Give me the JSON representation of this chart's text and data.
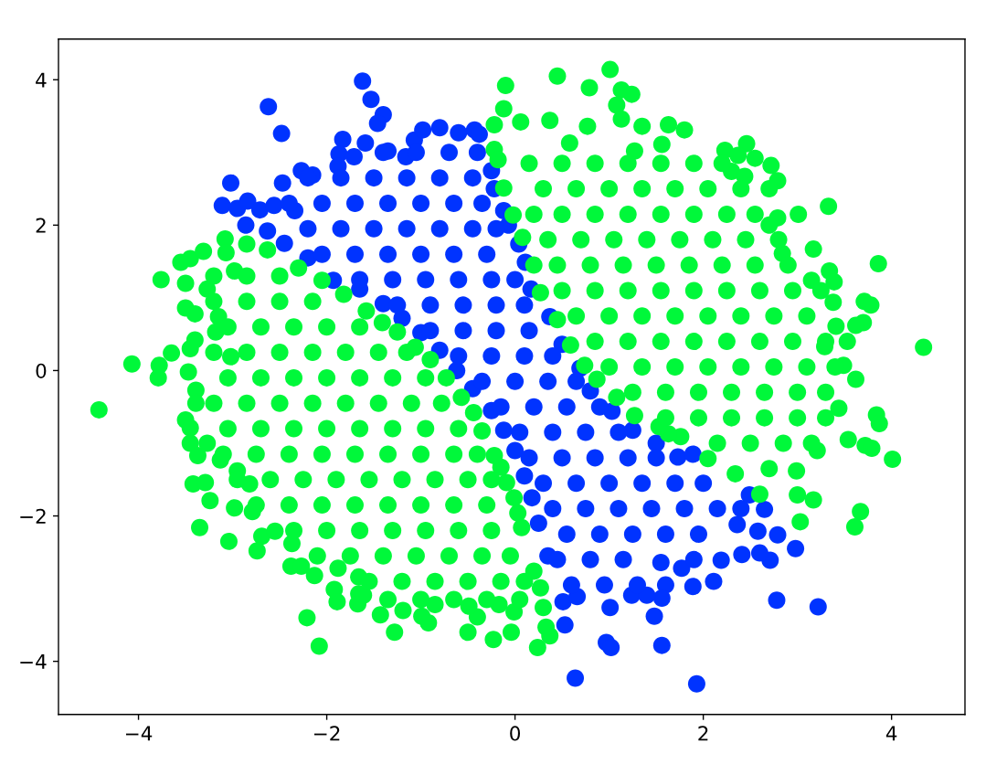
{
  "chart_data": {
    "type": "scatter",
    "marker": "circle",
    "xlim": [
      -4.85,
      4.78
    ],
    "ylim": [
      -4.73,
      4.56
    ],
    "xticks": [
      {
        "value": -4,
        "label": "−4"
      },
      {
        "value": -2,
        "label": "−2"
      },
      0,
      2,
      4
    ],
    "yticks": [
      {
        "value": -4,
        "label": "−4"
      },
      {
        "value": -2,
        "label": "−2"
      },
      0,
      2,
      4
    ],
    "series": [
      {
        "color": "#0033ff",
        "x": [
          -1.62,
          -1.53,
          -1.4,
          -1.46,
          -2.62,
          -2.48,
          -1.83,
          -1.87,
          -1.71,
          -3.02,
          -3.11,
          -2.95,
          -2.84,
          -2.71,
          -2.86,
          -2.56,
          -2.47,
          -2.27,
          -2.15,
          -1.88,
          -2.63,
          -2.34,
          -1.93,
          -1.59,
          -1.35,
          -1.16,
          -1.07,
          -0.98,
          -0.8,
          -0.6,
          -0.43,
          -0.38,
          -0.25,
          -0.22,
          -0.12,
          -0.07,
          0.04,
          0.11,
          0.17,
          0.37,
          0.5,
          0.69,
          0.8,
          1.03,
          1.25,
          1.5,
          1.73,
          1.89,
          2.49,
          2.65,
          2.36,
          2.58,
          2.79,
          2.98,
          2.71,
          2.6,
          2.41,
          2.19,
          2.11,
          1.89,
          1.77,
          1.6,
          1.56,
          2.78,
          3.22,
          1.56,
          1.93,
          0.53,
          0.64,
          0.97,
          1.02,
          1.48,
          1.55,
          1.01,
          1.24,
          1.4,
          0.51,
          0.66,
          0.35,
          0.25,
          0.18,
          0.1,
          0.0,
          -0.12,
          -0.25,
          -0.45,
          -0.62,
          -0.8,
          -1.0,
          -1.2,
          -1.4,
          -1.65,
          -2.2,
          -2.45,
          -1.4,
          -1.05,
          -0.7,
          -0.4,
          -2.2,
          -1.85,
          -1.5,
          -1.15,
          -0.8,
          -0.45,
          -2.4,
          -2.05,
          -1.7,
          -1.35,
          -1.0,
          -0.65,
          -0.35,
          -2.2,
          -1.85,
          -1.5,
          -1.15,
          -0.8,
          -0.45,
          -0.2,
          -2.05,
          -1.7,
          -1.35,
          -1.0,
          -0.65,
          -0.3,
          -1.65,
          -1.3,
          -0.95,
          -0.6,
          -0.25,
          0.0,
          -1.25,
          -0.9,
          -0.55,
          -0.2,
          0.1,
          -0.9,
          -0.55,
          -0.2,
          0.15,
          -0.6,
          -0.25,
          0.1,
          0.4,
          -0.35,
          0.0,
          0.35,
          0.65,
          -0.15,
          0.2,
          0.55,
          0.9,
          0.05,
          0.4,
          0.75,
          1.1,
          0.15,
          0.5,
          0.85,
          1.2,
          1.5,
          0.3,
          0.65,
          1.0,
          1.35,
          1.7,
          2.0,
          0.4,
          0.75,
          1.1,
          1.45,
          1.8,
          2.15,
          2.4,
          0.55,
          0.9,
          1.25,
          1.6,
          1.95,
          0.45,
          0.8,
          1.15,
          1.9,
          0.6,
          0.95,
          1.3
        ],
        "values": [
          3.98,
          3.73,
          3.52,
          3.4,
          3.63,
          3.26,
          3.18,
          2.98,
          2.94,
          2.58,
          2.27,
          2.23,
          2.33,
          2.21,
          2.0,
          2.27,
          2.58,
          2.75,
          2.69,
          2.81,
          1.92,
          2.2,
          1.24,
          3.13,
          3.02,
          2.94,
          3.17,
          3.31,
          3.34,
          3.27,
          3.31,
          3.25,
          2.75,
          2.5,
          2.2,
          2.0,
          1.74,
          1.49,
          1.12,
          0.74,
          0.36,
          0.03,
          -0.28,
          -0.56,
          -0.82,
          -1.0,
          -1.19,
          -1.15,
          -1.71,
          -1.91,
          -2.12,
          -2.21,
          -2.26,
          -2.45,
          -2.61,
          -2.51,
          -2.53,
          -2.61,
          -2.9,
          -2.97,
          -2.72,
          -2.95,
          -3.13,
          -3.16,
          -3.25,
          -3.78,
          -4.31,
          -3.5,
          -4.23,
          -3.74,
          -3.81,
          -3.38,
          -2.64,
          -3.26,
          -3.09,
          -3.09,
          -3.18,
          -3.11,
          -2.55,
          -2.1,
          -1.75,
          -1.45,
          -1.1,
          -0.82,
          -0.55,
          -0.25,
          0.0,
          0.28,
          0.52,
          0.72,
          0.92,
          1.12,
          1.55,
          1.75,
          3.0,
          3.0,
          3.0,
          3.0,
          2.65,
          2.65,
          2.65,
          2.65,
          2.65,
          2.65,
          2.3,
          2.3,
          2.3,
          2.3,
          2.3,
          2.3,
          2.3,
          1.95,
          1.95,
          1.95,
          1.95,
          1.95,
          1.95,
          1.95,
          1.6,
          1.6,
          1.6,
          1.6,
          1.6,
          1.6,
          1.25,
          1.25,
          1.25,
          1.25,
          1.25,
          1.25,
          0.9,
          0.9,
          0.9,
          0.9,
          0.9,
          0.55,
          0.55,
          0.55,
          0.55,
          0.2,
          0.2,
          0.2,
          0.2,
          -0.15,
          -0.15,
          -0.15,
          -0.15,
          -0.5,
          -0.5,
          -0.5,
          -0.5,
          -0.85,
          -0.85,
          -0.85,
          -0.85,
          -1.2,
          -1.2,
          -1.2,
          -1.2,
          -1.2,
          -1.55,
          -1.55,
          -1.55,
          -1.55,
          -1.55,
          -1.55,
          -1.9,
          -1.9,
          -1.9,
          -1.9,
          -1.9,
          -1.9,
          -1.9,
          -2.25,
          -2.25,
          -2.25,
          -2.25,
          -2.25,
          -2.6,
          -2.6,
          -2.6,
          -2.6,
          -2.95,
          -2.95,
          -2.95
        ]
      },
      {
        "color": "#00f83a",
        "x": [
          -3.08,
          -3.07,
          -2.85,
          -3.55,
          -3.45,
          -3.31,
          -3.76,
          -3.5,
          -3.27,
          -3.5,
          -3.4,
          -3.4,
          -3.45,
          -3.65,
          -4.07,
          -3.78,
          -3.79,
          -3.47,
          -3.15,
          -3.18,
          -3.02,
          -2.98,
          -4.42,
          -3.39,
          -3.39,
          -3.5,
          -3.45,
          -3.45,
          -3.37,
          -3.27,
          -3.13,
          -2.95,
          -3.42,
          -3.29,
          -3.24,
          -3.35,
          -3.04,
          -2.98,
          -2.82,
          -2.79,
          -2.74,
          -2.69,
          -2.55,
          -2.37,
          -2.38,
          -2.27,
          -2.13,
          -2.21,
          -2.08,
          -1.92,
          -1.89,
          -1.67,
          -1.66,
          -1.88,
          -1.66,
          -1.28,
          -1.43,
          -1.19,
          -0.99,
          -0.92,
          -0.85,
          -0.5,
          -0.4,
          -0.49,
          -0.23,
          -0.04,
          -0.01,
          -0.17,
          0.24,
          0.37,
          0.33,
          0.3,
          0.27,
          -1.61,
          0.2,
          0.07,
          0.03,
          -0.01,
          -0.09,
          -0.15,
          -0.22,
          -0.35,
          -0.44,
          -0.57,
          -0.73,
          -0.9,
          -1.06,
          -1.25,
          -1.41,
          -1.58,
          -2.63,
          -2.3,
          -2.05,
          -1.82,
          -3.2,
          -2.85,
          -2.5,
          -3.2,
          -2.85,
          -2.5,
          -2.15,
          -3.05,
          -2.7,
          -2.35,
          -2.0,
          -1.65,
          -3.2,
          -2.85,
          -2.5,
          -2.15,
          -1.8,
          -1.45,
          -1.15,
          -3.05,
          -2.7,
          -2.35,
          -2.0,
          -1.65,
          -1.3,
          -0.95,
          -3.2,
          -2.85,
          -2.5,
          -2.15,
          -1.8,
          -1.45,
          -1.1,
          -0.78,
          -3.05,
          -2.7,
          -2.35,
          -2.0,
          -1.65,
          -1.3,
          -0.95,
          -0.6,
          -3.1,
          -2.75,
          -2.4,
          -2.05,
          -1.7,
          -1.35,
          -1.0,
          -0.65,
          -0.4,
          -2.95,
          -2.6,
          -2.25,
          -1.9,
          -1.55,
          -1.2,
          -0.85,
          -0.5,
          -0.25,
          -2.75,
          -2.4,
          -2.05,
          -1.7,
          -1.35,
          -1.0,
          -0.65,
          -0.3,
          -2.35,
          -2.0,
          -1.65,
          -1.3,
          -0.95,
          -0.6,
          -0.25,
          -2.1,
          -1.75,
          -1.4,
          -1.05,
          -0.7,
          -0.35,
          -0.05,
          -1.55,
          -1.2,
          -0.85,
          -0.5,
          -0.15,
          0.1,
          -1.35,
          -1.0,
          -0.65,
          -0.3,
          0.05
        ],
        "values": [
          1.81,
          1.62,
          1.74,
          1.49,
          1.54,
          1.64,
          1.25,
          1.2,
          1.12,
          0.86,
          0.78,
          0.42,
          0.3,
          0.24,
          0.09,
          0.07,
          -0.1,
          -0.02,
          0.74,
          0.53,
          0.19,
          1.37,
          -0.54,
          -0.27,
          -0.45,
          -0.68,
          -0.79,
          -1.0,
          -1.17,
          -1.0,
          -1.23,
          -1.38,
          -1.56,
          -1.54,
          -1.79,
          -2.16,
          -2.35,
          -1.89,
          -1.56,
          -1.94,
          -2.48,
          -2.28,
          -2.21,
          -2.38,
          -2.69,
          -2.69,
          -2.82,
          -3.4,
          -3.79,
          -3.01,
          -3.18,
          -3.21,
          -3.07,
          -2.72,
          -2.84,
          -3.6,
          -3.36,
          -3.3,
          -3.38,
          -3.47,
          -3.22,
          -3.6,
          -3.39,
          -3.24,
          -3.7,
          -3.6,
          -3.32,
          -3.22,
          -3.81,
          -3.65,
          -3.53,
          -3.26,
          -2.99,
          -3.09,
          -2.76,
          -2.16,
          -1.96,
          -1.75,
          -1.54,
          -1.33,
          -1.17,
          -0.83,
          -0.58,
          -0.37,
          -0.1,
          0.15,
          0.32,
          0.53,
          0.66,
          0.82,
          1.66,
          1.41,
          1.24,
          1.05,
          1.3,
          1.3,
          1.3,
          0.95,
          0.95,
          0.95,
          0.95,
          0.6,
          0.6,
          0.6,
          0.6,
          0.6,
          0.25,
          0.25,
          0.25,
          0.25,
          0.25,
          0.25,
          0.25,
          -0.1,
          -0.1,
          -0.1,
          -0.1,
          -0.1,
          -0.1,
          -0.1,
          -0.45,
          -0.45,
          -0.45,
          -0.45,
          -0.45,
          -0.45,
          -0.45,
          -0.45,
          -0.8,
          -0.8,
          -0.8,
          -0.8,
          -0.8,
          -0.8,
          -0.8,
          -0.8,
          -1.15,
          -1.15,
          -1.15,
          -1.15,
          -1.15,
          -1.15,
          -1.15,
          -1.15,
          -1.15,
          -1.5,
          -1.5,
          -1.5,
          -1.5,
          -1.5,
          -1.5,
          -1.5,
          -1.5,
          -1.5,
          -1.85,
          -1.85,
          -1.85,
          -1.85,
          -1.85,
          -1.85,
          -1.85,
          -1.85,
          -2.2,
          -2.2,
          -2.2,
          -2.2,
          -2.2,
          -2.2,
          -2.2,
          -2.55,
          -2.55,
          -2.55,
          -2.55,
          -2.55,
          -2.55,
          -2.55,
          -2.9,
          -2.9,
          -2.9,
          -2.9,
          -2.9,
          -2.9,
          -3.15,
          -3.15,
          -3.15,
          -3.15,
          -3.15
        ]
      },
      {
        "color": "#00f83a",
        "x": [
          -0.1,
          -0.12,
          -0.22,
          0.06,
          0.37,
          0.45,
          0.79,
          1.01,
          1.13,
          1.24,
          1.08,
          1.13,
          1.35,
          0.77,
          1.56,
          1.63,
          1.27,
          0.58,
          -0.22,
          1.8,
          2.23,
          2.46,
          2.37,
          2.55,
          2.72,
          2.3,
          2.44,
          2.79,
          3.33,
          3.01,
          2.79,
          2.7,
          3.17,
          2.84,
          3.86,
          3.34,
          3.39,
          3.15,
          3.38,
          3.71,
          3.78,
          3.7,
          3.62,
          3.41,
          3.53,
          4.34,
          3.29,
          3.49,
          3.62,
          3.44,
          3.84,
          3.87,
          3.54,
          3.72,
          3.79,
          4.01,
          3.21,
          2.99,
          3.0,
          3.17,
          3.67,
          3.61,
          3.03,
          2.6,
          2.34,
          2.05,
          1.76,
          1.63,
          1.53,
          1.27,
          1.08,
          0.87,
          -0.18,
          -0.12,
          -0.02,
          0.08,
          0.2,
          0.27,
          0.45,
          0.59,
          0.74,
          0.15,
          0.5,
          0.85,
          1.2,
          1.55,
          1.9,
          2.2,
          0.3,
          0.65,
          1.0,
          1.35,
          1.7,
          2.05,
          2.4,
          2.7,
          0.2,
          0.5,
          0.85,
          1.2,
          1.55,
          1.9,
          2.25,
          2.55,
          0.35,
          0.7,
          1.05,
          1.4,
          1.75,
          2.1,
          2.45,
          2.8,
          0.45,
          0.8,
          1.15,
          1.5,
          1.85,
          2.2,
          2.55,
          2.9,
          0.5,
          0.85,
          1.2,
          1.55,
          1.9,
          2.25,
          2.6,
          2.95,
          3.25,
          0.65,
          1.0,
          1.35,
          1.7,
          2.05,
          2.4,
          2.75,
          3.1,
          0.85,
          1.2,
          1.55,
          1.9,
          2.25,
          2.6,
          2.95,
          3.3,
          1.0,
          1.35,
          1.7,
          2.05,
          2.4,
          2.75,
          3.1,
          3.4,
          1.25,
          1.6,
          1.95,
          2.3,
          2.65,
          3.0,
          3.3,
          1.6,
          1.95,
          2.3,
          2.65,
          3.0,
          3.3,
          2.15,
          2.5,
          2.85,
          3.15,
          2.7
        ],
        "values": [
          3.92,
          3.6,
          3.38,
          3.42,
          3.44,
          4.05,
          3.89,
          4.14,
          3.86,
          3.8,
          3.65,
          3.46,
          3.36,
          3.36,
          3.11,
          3.38,
          3.02,
          3.13,
          3.04,
          3.31,
          3.03,
          3.12,
          2.96,
          2.92,
          2.82,
          2.74,
          2.67,
          2.61,
          2.26,
          2.15,
          2.1,
          2.0,
          1.67,
          1.61,
          1.47,
          1.37,
          1.22,
          1.24,
          0.94,
          0.95,
          0.9,
          0.66,
          0.62,
          0.61,
          0.4,
          0.32,
          0.33,
          0.07,
          -0.12,
          -0.52,
          -0.61,
          -0.73,
          -0.95,
          -1.03,
          -1.07,
          -1.22,
          -1.1,
          -1.38,
          -1.71,
          -1.78,
          -1.94,
          -2.15,
          -2.08,
          -1.7,
          -1.42,
          -1.21,
          -0.91,
          -0.87,
          -0.77,
          -0.62,
          -0.37,
          -0.12,
          2.9,
          2.51,
          2.14,
          1.83,
          1.45,
          1.07,
          0.7,
          0.35,
          0.07,
          2.85,
          2.85,
          2.85,
          2.85,
          2.85,
          2.85,
          2.85,
          2.5,
          2.5,
          2.5,
          2.5,
          2.5,
          2.5,
          2.5,
          2.5,
          2.15,
          2.15,
          2.15,
          2.15,
          2.15,
          2.15,
          2.15,
          2.15,
          1.8,
          1.8,
          1.8,
          1.8,
          1.8,
          1.8,
          1.8,
          1.8,
          1.45,
          1.45,
          1.45,
          1.45,
          1.45,
          1.45,
          1.45,
          1.45,
          1.1,
          1.1,
          1.1,
          1.1,
          1.1,
          1.1,
          1.1,
          1.1,
          1.1,
          0.75,
          0.75,
          0.75,
          0.75,
          0.75,
          0.75,
          0.75,
          0.75,
          0.4,
          0.4,
          0.4,
          0.4,
          0.4,
          0.4,
          0.4,
          0.4,
          0.05,
          0.05,
          0.05,
          0.05,
          0.05,
          0.05,
          0.05,
          0.05,
          -0.3,
          -0.3,
          -0.3,
          -0.3,
          -0.3,
          -0.3,
          -0.3,
          -0.65,
          -0.65,
          -0.65,
          -0.65,
          -0.65,
          -0.65,
          -1.0,
          -1.0,
          -1.0,
          -1.0,
          -1.35
        ]
      }
    ]
  }
}
